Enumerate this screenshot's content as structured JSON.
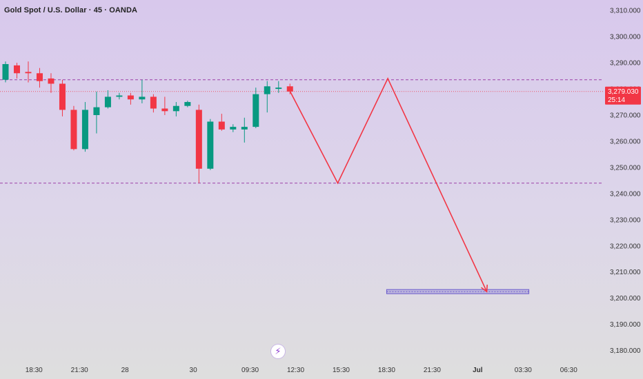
{
  "header": {
    "title": "Gold Spot / U.S. Dollar · 45 · OANDA"
  },
  "chart_data": {
    "type": "candlestick",
    "ylim": [
      3177,
      3314
    ],
    "y_ticks": [
      3180,
      3190,
      3200,
      3210,
      3220,
      3230,
      3240,
      3250,
      3260,
      3270,
      3280,
      3290,
      3300,
      3310
    ],
    "y_tick_labels": [
      "3,180.000",
      "3,190.000",
      "3,200.000",
      "3,210.000",
      "3,220.000",
      "3,230.000",
      "3,240.000",
      "3,250.000",
      "3,260.000",
      "3,270.000",
      "3,280.000",
      "3,290.000",
      "3,300.000",
      "3,310.000"
    ],
    "x_range": [
      0,
      53
    ],
    "x_ticks": [
      {
        "x": 2.5,
        "label": "18:30",
        "bold": false
      },
      {
        "x": 6.5,
        "label": "21:30",
        "bold": false
      },
      {
        "x": 10.5,
        "label": "28",
        "bold": false
      },
      {
        "x": 16.5,
        "label": "30",
        "bold": false
      },
      {
        "x": 21.5,
        "label": "09:30",
        "bold": false
      },
      {
        "x": 25.5,
        "label": "12:30",
        "bold": false
      },
      {
        "x": 29.5,
        "label": "15:30",
        "bold": false
      },
      {
        "x": 33.5,
        "label": "18:30",
        "bold": false
      },
      {
        "x": 37.5,
        "label": "21:30",
        "bold": false
      },
      {
        "x": 41.5,
        "label": "Jul",
        "bold": true
      },
      {
        "x": 45.5,
        "label": "03:30",
        "bold": false
      },
      {
        "x": 49.5,
        "label": "06:30",
        "bold": false
      }
    ],
    "candles": [
      {
        "o": 3283.5,
        "h": 3290.5,
        "l": 3282.5,
        "c": 3289.5
      },
      {
        "o": 3289.0,
        "h": 3290.0,
        "l": 3284.0,
        "c": 3286.0
      },
      {
        "o": 3286.5,
        "h": 3290.5,
        "l": 3282.5,
        "c": 3286.0
      },
      {
        "o": 3286.0,
        "h": 3288.0,
        "l": 3280.5,
        "c": 3283.0
      },
      {
        "o": 3284.0,
        "h": 3286.0,
        "l": 3278.5,
        "c": 3282.0
      },
      {
        "o": 3282.0,
        "h": 3283.5,
        "l": 3269.5,
        "c": 3272.0
      },
      {
        "o": 3272.0,
        "h": 3273.5,
        "l": 3256.5,
        "c": 3257.0
      },
      {
        "o": 3257.0,
        "h": 3275.0,
        "l": 3256.0,
        "c": 3272.0
      },
      {
        "o": 3270.0,
        "h": 3279.0,
        "l": 3263.0,
        "c": 3273.0
      },
      {
        "o": 3273.0,
        "h": 3279.5,
        "l": 3272.5,
        "c": 3277.0
      },
      {
        "o": 3277.0,
        "h": 3278.5,
        "l": 3276.0,
        "c": 3277.5
      },
      {
        "o": 3277.5,
        "h": 3278.5,
        "l": 3274.0,
        "c": 3276.0
      },
      {
        "o": 3276.0,
        "h": 3283.5,
        "l": 3274.5,
        "c": 3277.0
      },
      {
        "o": 3277.0,
        "h": 3278.0,
        "l": 3271.0,
        "c": 3272.5
      },
      {
        "o": 3272.5,
        "h": 3277.0,
        "l": 3270.0,
        "c": 3271.5
      },
      {
        "o": 3271.5,
        "h": 3275.0,
        "l": 3269.5,
        "c": 3273.5
      },
      {
        "o": 3273.5,
        "h": 3275.5,
        "l": 3273.0,
        "c": 3275.0
      },
      {
        "o": 3272.0,
        "h": 3274.0,
        "l": 3244.0,
        "c": 3249.5
      },
      {
        "o": 3249.5,
        "h": 3268.5,
        "l": 3249.0,
        "c": 3267.5
      },
      {
        "o": 3267.5,
        "h": 3270.5,
        "l": 3264.0,
        "c": 3264.5
      },
      {
        "o": 3264.5,
        "h": 3266.5,
        "l": 3263.5,
        "c": 3265.5
      },
      {
        "o": 3264.5,
        "h": 3269.0,
        "l": 3259.5,
        "c": 3265.5
      },
      {
        "o": 3265.5,
        "h": 3280.5,
        "l": 3265.0,
        "c": 3278.0
      },
      {
        "o": 3278.0,
        "h": 3283.0,
        "l": 3271.0,
        "c": 3281.0
      },
      {
        "o": 3280.0,
        "h": 3283.0,
        "l": 3278.5,
        "c": 3280.5
      },
      {
        "o": 3281.0,
        "h": 3282.0,
        "l": 3278.0,
        "c": 3279.0
      }
    ],
    "bull_color": "#089981",
    "bear_color": "#f23645",
    "h_lines": [
      {
        "y": 3283.5,
        "color": "#9c3fa8"
      },
      {
        "y": 3244.0,
        "color": "#9c3fa8"
      }
    ],
    "current_price": {
      "value": 3279.03,
      "label": "3,279.030",
      "countdown": "25:14",
      "color": "#f23645"
    },
    "projection": {
      "color": "#f23645",
      "points": [
        {
          "x": 24.9,
          "y": 3280.0
        },
        {
          "x": 29.2,
          "y": 3244.0
        },
        {
          "x": 33.6,
          "y": 3284.0
        },
        {
          "x": 42.3,
          "y": 3202.5
        }
      ]
    },
    "target_zone": {
      "x0": 33.5,
      "x1": 46.0,
      "y0": 3201.7,
      "y1": 3203.3,
      "color": "#6a5acd"
    }
  }
}
